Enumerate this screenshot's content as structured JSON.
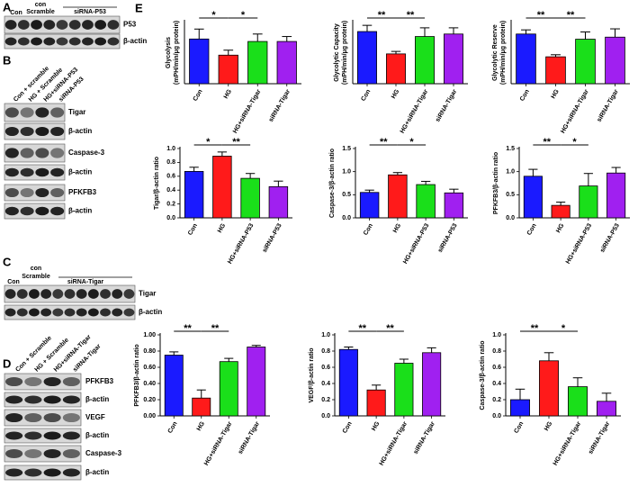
{
  "panel_labels": [
    "A",
    "B",
    "C",
    "D",
    "E"
  ],
  "blots": [
    {
      "lane_labels": [
        "Con",
        [
          "con",
          "Scramble"
        ],
        "siRNA-P53"
      ],
      "rows": [
        "P53",
        "β-actin"
      ]
    },
    {
      "lane_labels": [
        "Con + scramble",
        "HG + Scramble",
        "HG+siRNA-P53",
        "siRNA-P53"
      ],
      "rows": [
        "Tigar",
        "β-actin",
        "Caspase-3",
        "β-actin",
        "PFKFB3",
        "β-actin"
      ]
    },
    {
      "lane_labels": [
        "Con",
        [
          "con",
          "Scramble"
        ],
        "siRNA-Tigar"
      ],
      "rows": [
        "Tigar",
        "β-actin"
      ]
    },
    {
      "lane_labels": [
        "Con + Scramble",
        "HG + Scramble",
        "HG+siRNA-Tigar",
        "siRNA-Tigar"
      ],
      "rows": [
        "PFKFB3",
        "β-actin",
        "VEGF",
        "β-actin",
        "Caspase-3",
        "β-actin"
      ]
    }
  ],
  "chart_data": [
    {
      "type": "bar",
      "ylabel": [
        "Glycolysis",
        "(mPH/min/μg protein)"
      ],
      "categories": [
        "Con",
        "HG",
        "HG+siRNA-Tigar",
        "siRNA-Tigar"
      ],
      "values": [
        18,
        11.5,
        17,
        17
      ],
      "errors": [
        4,
        2,
        3,
        2
      ],
      "colors": [
        "#1a1aff",
        "#ff1a1a",
        "#1adf1a",
        "#a020f0"
      ],
      "ylim": [
        0,
        25
      ],
      "significance": [
        {
          "label": "*",
          "bars": [
            0,
            1
          ]
        },
        {
          "label": "*",
          "bars": [
            1,
            2
          ]
        }
      ]
    },
    {
      "type": "bar",
      "ylabel": [
        "Glycolytic Capacity",
        "(mPH/min/μg protein)"
      ],
      "categories": [
        "Con",
        "HG",
        "HG+siRNA-Tigar",
        "siRNA-Tigar"
      ],
      "values": [
        42,
        24,
        38,
        40
      ],
      "errors": [
        5,
        2,
        7,
        5
      ],
      "colors": [
        "#1a1aff",
        "#ff1a1a",
        "#1adf1a",
        "#a020f0"
      ],
      "ylim": [
        0,
        50
      ],
      "significance": [
        {
          "label": "**",
          "bars": [
            0,
            1
          ]
        },
        {
          "label": "**",
          "bars": [
            1,
            2
          ]
        }
      ]
    },
    {
      "type": "bar",
      "ylabel": [
        "Glycolytic Reserve",
        "(mPH/min/μg protein)"
      ],
      "categories": [
        "Con",
        "HG",
        "HG+siRNA-Tigar",
        "siRNA-Tigar"
      ],
      "values": [
        24,
        13,
        21.5,
        22.5
      ],
      "errors": [
        2,
        1,
        3.5,
        4
      ],
      "colors": [
        "#1a1aff",
        "#ff1a1a",
        "#1adf1a",
        "#a020f0"
      ],
      "ylim": [
        0,
        30
      ],
      "significance": [
        {
          "label": "**",
          "bars": [
            0,
            1
          ]
        },
        {
          "label": "**",
          "bars": [
            1,
            2
          ]
        }
      ]
    },
    {
      "type": "bar",
      "ylabel": [
        "Tigar/β-actin ratio"
      ],
      "categories": [
        "Con",
        "HG",
        "HG+siRNA-P53",
        "siRNA-P53"
      ],
      "values": [
        0.67,
        0.89,
        0.57,
        0.45
      ],
      "errors": [
        0.06,
        0.06,
        0.07,
        0.08
      ],
      "colors": [
        "#1a1aff",
        "#ff1a1a",
        "#1adf1a",
        "#a020f0"
      ],
      "ylim": [
        0,
        1.0
      ],
      "yticks": [
        {
          "value": 0,
          "label": "0.0"
        },
        {
          "value": 0.2,
          "label": "0.2"
        },
        {
          "value": 0.4,
          "label": "0.4"
        },
        {
          "value": 0.6,
          "label": "0.6"
        },
        {
          "value": 0.8,
          "label": "0.8"
        },
        {
          "value": 1,
          "label": "1.0"
        }
      ],
      "significance": [
        {
          "label": "*",
          "bars": [
            0,
            1
          ]
        },
        {
          "label": "**",
          "bars": [
            1,
            2
          ]
        }
      ]
    },
    {
      "type": "bar",
      "ylabel": [
        "Caspase-3/β-actin ratio"
      ],
      "categories": [
        "Con",
        "HG",
        "HG+siRNA-P53",
        "siRNA-P53"
      ],
      "values": [
        0.55,
        0.93,
        0.72,
        0.54
      ],
      "errors": [
        0.05,
        0.05,
        0.07,
        0.08
      ],
      "colors": [
        "#1a1aff",
        "#ff1a1a",
        "#1adf1a",
        "#a020f0"
      ],
      "ylim": [
        0,
        1.5
      ],
      "yticks": [
        {
          "value": 0,
          "label": "0.0"
        },
        {
          "value": 0.5,
          "label": "0.5"
        },
        {
          "value": 1,
          "label": "1.0"
        },
        {
          "value": 1.5,
          "label": "1.5"
        }
      ],
      "significance": [
        {
          "label": "**",
          "bars": [
            0,
            1
          ]
        },
        {
          "label": "*",
          "bars": [
            1,
            2
          ]
        }
      ]
    },
    {
      "type": "bar",
      "ylabel": [
        "PFKFB3/β-actin ratio"
      ],
      "categories": [
        "Con",
        "HG",
        "HG+siRNA-P53",
        "siRNA-P53"
      ],
      "values": [
        0.9,
        0.27,
        0.69,
        0.97
      ],
      "errors": [
        0.15,
        0.07,
        0.27,
        0.12
      ],
      "colors": [
        "#1a1aff",
        "#ff1a1a",
        "#1adf1a",
        "#a020f0"
      ],
      "ylim": [
        0,
        1.5
      ],
      "yticks": [
        {
          "value": 0,
          "label": "0.0"
        },
        {
          "value": 0.5,
          "label": "0.5"
        },
        {
          "value": 1,
          "label": "1.0"
        },
        {
          "value": 1.5,
          "label": "1.5"
        }
      ],
      "significance": [
        {
          "label": "**",
          "bars": [
            0,
            1
          ]
        },
        {
          "label": "*",
          "bars": [
            1,
            2
          ]
        }
      ]
    },
    {
      "type": "bar",
      "ylabel": [
        "PFKFB3/β-actin ratio"
      ],
      "categories": [
        "Con",
        "HG",
        "HG+siRNA-Tigar",
        "siRNA-Tigar"
      ],
      "values": [
        0.75,
        0.22,
        0.67,
        0.85
      ],
      "errors": [
        0.04,
        0.1,
        0.04,
        0.02
      ],
      "colors": [
        "#1a1aff",
        "#ff1a1a",
        "#1adf1a",
        "#a020f0"
      ],
      "ylim": [
        0,
        1.0
      ],
      "yticks": [
        {
          "value": 0,
          "label": "0.00"
        },
        {
          "value": 0.2,
          "label": "0.20"
        },
        {
          "value": 0.4,
          "label": "0.40"
        },
        {
          "value": 0.6,
          "label": "0.60"
        },
        {
          "value": 0.8,
          "label": "0.80"
        },
        {
          "value": 1,
          "label": "1.00"
        }
      ],
      "significance": [
        {
          "label": "**",
          "bars": [
            0,
            1
          ]
        },
        {
          "label": "**",
          "bars": [
            1,
            2
          ]
        }
      ]
    },
    {
      "type": "bar",
      "ylabel": [
        "VEGF/β-actin ratio"
      ],
      "categories": [
        "Con",
        "HG",
        "HG+siRNA-Tigar",
        "siRNA-Tigar"
      ],
      "values": [
        0.82,
        0.32,
        0.65,
        0.78
      ],
      "errors": [
        0.03,
        0.06,
        0.05,
        0.06
      ],
      "colors": [
        "#1a1aff",
        "#ff1a1a",
        "#1adf1a",
        "#a020f0"
      ],
      "ylim": [
        0,
        1.0
      ],
      "yticks": [
        {
          "value": 0,
          "label": "0.0"
        },
        {
          "value": 0.2,
          "label": "0.2"
        },
        {
          "value": 0.4,
          "label": "0.4"
        },
        {
          "value": 0.6,
          "label": "0.6"
        },
        {
          "value": 0.8,
          "label": "0.8"
        },
        {
          "value": 1,
          "label": "1.0"
        }
      ],
      "significance": [
        {
          "label": "**",
          "bars": [
            0,
            1
          ]
        },
        {
          "label": "**",
          "bars": [
            1,
            2
          ]
        }
      ]
    },
    {
      "type": "bar",
      "ylabel": [
        "Caspase-3/β-actin ratio"
      ],
      "categories": [
        "Con",
        "HG",
        "HG+siRNA-Tigar",
        "siRNA-Tigar"
      ],
      "values": [
        0.2,
        0.68,
        0.36,
        0.18
      ],
      "errors": [
        0.13,
        0.1,
        0.11,
        0.1
      ],
      "colors": [
        "#1a1aff",
        "#ff1a1a",
        "#1adf1a",
        "#a020f0"
      ],
      "ylim": [
        0,
        1.0
      ],
      "yticks": [
        {
          "value": 0,
          "label": "0.0"
        },
        {
          "value": 0.2,
          "label": "0.2"
        },
        {
          "value": 0.4,
          "label": "0.4"
        },
        {
          "value": 0.6,
          "label": "0.6"
        },
        {
          "value": 0.8,
          "label": "0.8"
        },
        {
          "value": 1,
          "label": "1.0"
        }
      ],
      "significance": [
        {
          "label": "**",
          "bars": [
            0,
            1
          ]
        },
        {
          "label": "*",
          "bars": [
            1,
            2
          ]
        }
      ]
    }
  ]
}
